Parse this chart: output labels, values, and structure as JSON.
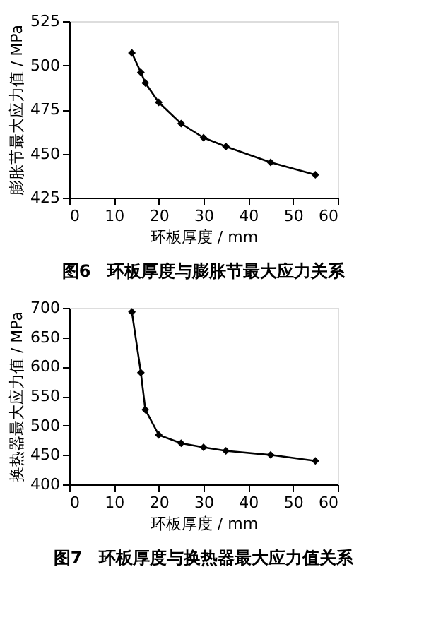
{
  "chart_data": [
    {
      "type": "line",
      "title": "图6　环板厚度与膨胀节最大应力关系",
      "xlabel": "环板厚度 / mm",
      "ylabel": "膨胀节最大应力值 / MPa",
      "x": [
        14,
        16,
        17,
        20,
        25,
        30,
        35,
        45,
        55
      ],
      "series": [
        {
          "color": "#000000",
          "values": [
            507,
            496,
            490,
            479,
            467,
            459,
            454,
            445,
            438
          ]
        }
      ],
      "xlim": [
        0,
        60
      ],
      "xticks": [
        0,
        10,
        20,
        30,
        40,
        50,
        60
      ],
      "ylim": [
        425,
        525
      ],
      "yticks": [
        425,
        450,
        475,
        500,
        525
      ],
      "grid": false,
      "marker": "diamond",
      "line_style": "solid"
    },
    {
      "type": "line",
      "title": "图7　环板厚度与换热器最大应力值关系",
      "xlabel": "环板厚度 / mm",
      "ylabel": "换热器最大应力值 / MPa",
      "x": [
        14,
        16,
        17,
        20,
        25,
        30,
        35,
        45,
        55
      ],
      "series": [
        {
          "color": "#000000",
          "values": [
            693,
            590,
            527,
            484,
            470,
            463,
            457,
            450,
            440
          ]
        }
      ],
      "xlim": [
        0,
        60
      ],
      "xticks": [
        0,
        10,
        20,
        30,
        40,
        50,
        60
      ],
      "ylim": [
        400,
        700
      ],
      "yticks": [
        400,
        450,
        500,
        550,
        600,
        650,
        700
      ],
      "grid": false,
      "marker": "diamond",
      "line_style": "solid"
    }
  ]
}
